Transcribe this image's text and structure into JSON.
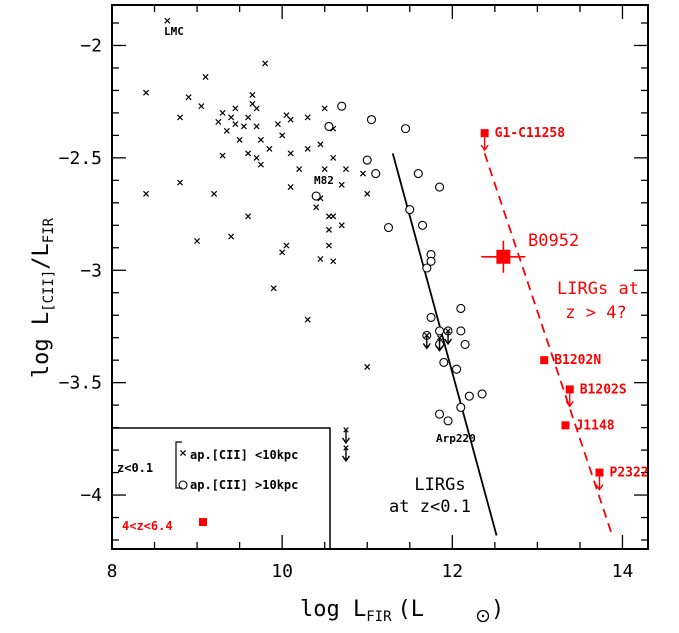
{
  "chart_data": {
    "type": "scatter",
    "xlabel": "log L",
    "xlabel_sub": "FIR",
    "xlabel_unit_open": "(L",
    "xlabel_unit_close": ")",
    "ylabel": "log L",
    "ylabel_sub1": "[CII]",
    "ylabel_mid": "/L",
    "ylabel_sub2": "FIR",
    "xlim": [
      8,
      14.3
    ],
    "ylim": [
      -4.24,
      -1.82
    ],
    "x_ticks": [
      "8",
      "10",
      "12",
      "14"
    ],
    "x_tick_values": [
      8,
      10,
      12,
      14
    ],
    "y_ticks": [
      "−2",
      "−2.5",
      "−3",
      "−3.5",
      "−4"
    ],
    "y_tick_values": [
      -2,
      -2.5,
      -3,
      -3.5,
      -4
    ],
    "colors": {
      "local": "#000000",
      "highz": "#ff0000"
    },
    "small_aperture_crosses": [
      [
        8.4,
        -2.21
      ],
      [
        8.65,
        -1.89
      ],
      [
        8.8,
        -2.32
      ],
      [
        8.9,
        -2.23
      ],
      [
        9.05,
        -2.27
      ],
      [
        9.1,
        -2.14
      ],
      [
        9.25,
        -2.34
      ],
      [
        9.3,
        -2.3
      ],
      [
        9.35,
        -2.38
      ],
      [
        9.4,
        -2.32
      ],
      [
        9.45,
        -2.35
      ],
      [
        9.45,
        -2.28
      ],
      [
        9.55,
        -2.36
      ],
      [
        9.6,
        -2.32
      ],
      [
        9.65,
        -2.22
      ],
      [
        9.65,
        -2.26
      ],
      [
        9.7,
        -2.28
      ],
      [
        9.7,
        -2.36
      ],
      [
        9.75,
        -2.42
      ],
      [
        9.8,
        -2.08
      ],
      [
        9.3,
        -2.49
      ],
      [
        9.6,
        -2.48
      ],
      [
        9.7,
        -2.5
      ],
      [
        9.75,
        -2.53
      ],
      [
        9.95,
        -2.35
      ],
      [
        10.05,
        -2.31
      ],
      [
        10.1,
        -2.33
      ],
      [
        10.0,
        -2.4
      ],
      [
        10.3,
        -2.32
      ],
      [
        10.5,
        -2.28
      ],
      [
        10.6,
        -2.37
      ],
      [
        10.1,
        -2.48
      ],
      [
        10.3,
        -2.46
      ],
      [
        10.45,
        -2.44
      ],
      [
        10.6,
        -2.5
      ],
      [
        10.75,
        -2.55
      ],
      [
        8.4,
        -2.66
      ],
      [
        8.8,
        -2.61
      ],
      [
        9.2,
        -2.66
      ],
      [
        10.1,
        -2.63
      ],
      [
        10.7,
        -2.62
      ],
      [
        10.95,
        -2.57
      ],
      [
        11.0,
        -2.66
      ],
      [
        9.6,
        -2.76
      ],
      [
        10.55,
        -2.76
      ],
      [
        10.6,
        -2.76
      ],
      [
        10.7,
        -2.8
      ],
      [
        9.0,
        -2.87
      ],
      [
        9.4,
        -2.85
      ],
      [
        10.0,
        -2.92
      ],
      [
        10.05,
        -2.89
      ],
      [
        10.55,
        -2.89
      ],
      [
        10.6,
        -2.96
      ],
      [
        9.9,
        -3.08
      ],
      [
        10.45,
        -2.95
      ],
      [
        10.3,
        -3.22
      ],
      [
        11.0,
        -3.43
      ],
      [
        10.45,
        -2.68
      ],
      [
        10.55,
        -2.82
      ],
      [
        10.4,
        -2.72
      ],
      [
        10.5,
        -2.55
      ],
      [
        10.2,
        -2.55
      ],
      [
        9.5,
        -2.42
      ],
      [
        9.85,
        -2.46
      ]
    ],
    "large_aperture_circles": [
      [
        10.55,
        -2.36
      ],
      [
        10.7,
        -2.27
      ],
      [
        11.05,
        -2.33
      ],
      [
        11.45,
        -2.37
      ],
      [
        10.4,
        -2.67
      ],
      [
        11.0,
        -2.51
      ],
      [
        11.1,
        -2.57
      ],
      [
        11.6,
        -2.57
      ],
      [
        11.85,
        -2.63
      ],
      [
        11.5,
        -2.73
      ],
      [
        11.25,
        -2.81
      ],
      [
        11.65,
        -2.8
      ],
      [
        11.75,
        -2.93
      ],
      [
        11.75,
        -2.96
      ],
      [
        11.7,
        -2.99
      ],
      [
        12.1,
        -3.17
      ],
      [
        11.75,
        -3.21
      ],
      [
        11.7,
        -3.29
      ],
      [
        11.85,
        -3.27
      ],
      [
        11.95,
        -3.27
      ],
      [
        11.85,
        -3.33
      ],
      [
        12.1,
        -3.27
      ],
      [
        12.15,
        -3.33
      ],
      [
        11.9,
        -3.41
      ],
      [
        12.05,
        -3.44
      ],
      [
        12.2,
        -3.56
      ],
      [
        12.35,
        -3.55
      ],
      [
        12.1,
        -3.61
      ],
      [
        11.85,
        -3.64
      ],
      [
        11.95,
        -3.67
      ]
    ],
    "local_upper_limits": [
      [
        10.75,
        -3.71
      ],
      [
        10.75,
        -3.79
      ],
      [
        11.7,
        -3.29
      ],
      [
        11.85,
        -3.3
      ],
      [
        11.95,
        -3.27
      ]
    ],
    "legend_highz_marker": [
      9.07,
      -4.12
    ],
    "highz_sources": [
      {
        "name": "G1-C11258",
        "x": 12.38,
        "y": -2.39,
        "limit": true
      },
      {
        "name": "B0952",
        "x": 12.6,
        "y": -2.94,
        "limit": false,
        "highlight": true
      },
      {
        "name": "B1202N",
        "x": 13.08,
        "y": -3.4,
        "limit": false
      },
      {
        "name": "B1202S",
        "x": 13.38,
        "y": -3.53,
        "limit": true
      },
      {
        "name": "J1148",
        "x": 13.33,
        "y": -3.69,
        "limit": false
      },
      {
        "name": "P2322",
        "x": 13.73,
        "y": -3.9,
        "limit": true
      }
    ],
    "local_fit_line": {
      "x": [
        11.3,
        12.52
      ],
      "y": [
        -2.48,
        -4.18
      ]
    },
    "highz_fit_line": {
      "x": [
        12.38,
        13.88
      ],
      "y": [
        -2.48,
        -4.18
      ]
    },
    "annotations": {
      "lmc": "LMC",
      "m82": "M82",
      "arp220": "Arp220",
      "lirgs_low_1": "LIRGs",
      "lirgs_low_2": "at z<0.1",
      "lirgs_high_1": "LIRGs at",
      "lirgs_high_2": "z > 4?",
      "b0952": "B0952"
    },
    "legend": {
      "redshift_label": "z<0.1",
      "cross_label": "ap.[CII] <10kpc",
      "circle_label": "ap.[CII] >10kpc",
      "highz_label": "4<z<6.4"
    }
  }
}
